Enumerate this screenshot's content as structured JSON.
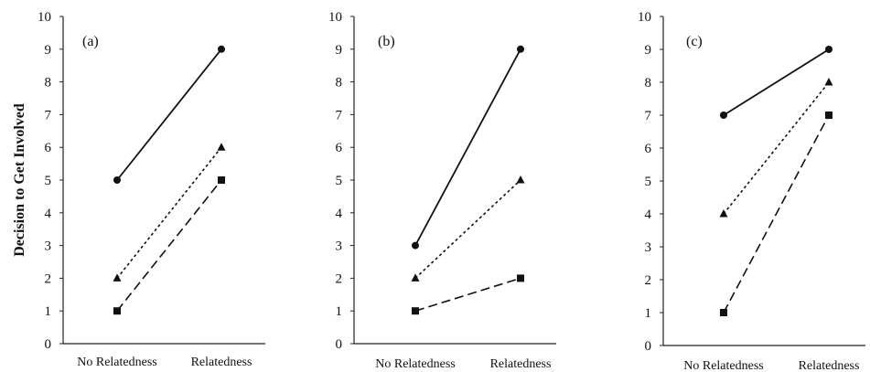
{
  "chart_data": [
    {
      "type": "line",
      "panel_label": "(a)",
      "ylabel": "Decision to Get Involved",
      "categories": [
        "No Relatedness",
        "Relatedness"
      ],
      "ylim": [
        0,
        10
      ],
      "yticks": [
        0,
        1,
        2,
        3,
        4,
        5,
        6,
        7,
        8,
        9,
        10
      ],
      "grid": false,
      "series": [
        {
          "marker": "circle",
          "line_style": "solid",
          "values": [
            5,
            9
          ]
        },
        {
          "marker": "triangle",
          "line_style": "dotted",
          "values": [
            2,
            6
          ]
        },
        {
          "marker": "square",
          "line_style": "dashed",
          "values": [
            1,
            5
          ]
        }
      ]
    },
    {
      "type": "line",
      "panel_label": "(b)",
      "ylabel": "",
      "categories": [
        "No Relatedness",
        "Relatedness"
      ],
      "ylim": [
        0,
        10
      ],
      "yticks": [
        0,
        1,
        2,
        3,
        4,
        5,
        6,
        7,
        8,
        9,
        10
      ],
      "grid": false,
      "series": [
        {
          "marker": "circle",
          "line_style": "solid",
          "values": [
            3,
            9
          ]
        },
        {
          "marker": "triangle",
          "line_style": "dotted",
          "values": [
            2,
            5
          ]
        },
        {
          "marker": "square",
          "line_style": "dashed",
          "values": [
            1,
            2
          ]
        }
      ]
    },
    {
      "type": "line",
      "panel_label": "(c)",
      "ylabel": "",
      "categories": [
        "No Relatedness",
        "Relatedness"
      ],
      "ylim": [
        0,
        10
      ],
      "yticks": [
        0,
        1,
        2,
        3,
        4,
        5,
        6,
        7,
        8,
        9,
        10
      ],
      "grid": false,
      "series": [
        {
          "marker": "circle",
          "line_style": "solid",
          "values": [
            7,
            9
          ]
        },
        {
          "marker": "triangle",
          "line_style": "dotted",
          "values": [
            4,
            8
          ]
        },
        {
          "marker": "square",
          "line_style": "dashed",
          "values": [
            1,
            7
          ]
        }
      ]
    }
  ]
}
